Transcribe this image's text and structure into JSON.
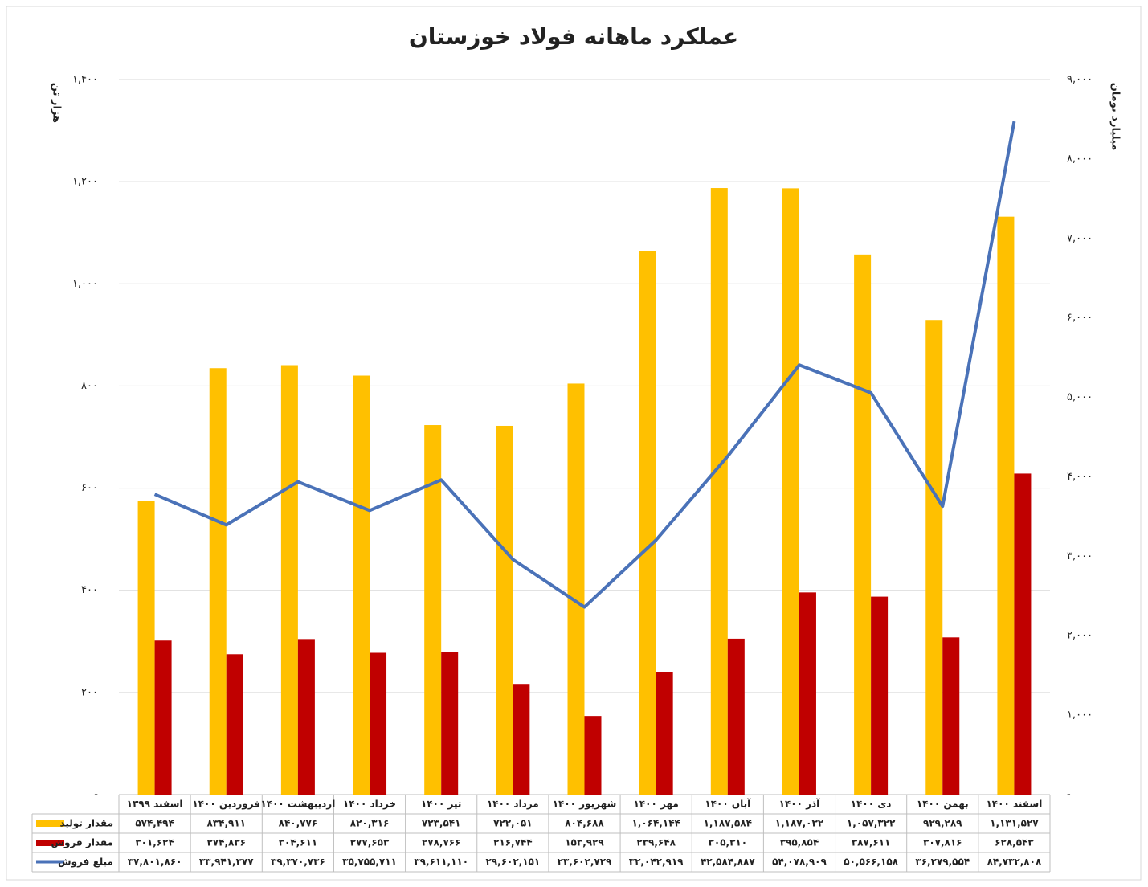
{
  "chart_data": {
    "type": "bar",
    "title": "عملکرد ماهانه فولاد خوزستان",
    "y_label": "هزار تن",
    "y2_label": "میلیارد تومان",
    "categories": [
      "اسفند ۱۳۹۹",
      "فروردین ۱۴۰۰",
      "اردیبهشت ۱۴۰۰",
      "خرداد ۱۴۰۰",
      "تیر ۱۴۰۰",
      "مرداد ۱۴۰۰",
      "شهریور ۱۴۰۰",
      "مهر ۱۴۰۰",
      "آبان ۱۴۰۰",
      "آذر ۱۴۰۰",
      "دی ۱۴۰۰",
      "بهمن ۱۴۰۰",
      "اسفند ۱۴۰۰"
    ],
    "series": [
      {
        "name": "مقدار تولید",
        "type": "bar",
        "color": "#ffc000",
        "values": [
          574.494,
          834.911,
          840.776,
          820.316,
          723.541,
          722.051,
          804.688,
          1064.144,
          1187.584,
          1187.032,
          1057.322,
          929.289,
          1131.527
        ],
        "value_labels": [
          "۵۷۴,۴۹۴",
          "۸۳۴,۹۱۱",
          "۸۴۰,۷۷۶",
          "۸۲۰,۳۱۶",
          "۷۲۳,۵۴۱",
          "۷۲۲,۰۵۱",
          "۸۰۴,۶۸۸",
          "۱,۰۶۴,۱۴۴",
          "۱,۱۸۷,۵۸۴",
          "۱,۱۸۷,۰۳۲",
          "۱,۰۵۷,۳۲۲",
          "۹۲۹,۲۸۹",
          "۱,۱۳۱,۵۲۷"
        ]
      },
      {
        "name": "مقدار فروش",
        "type": "bar",
        "color": "#c00000",
        "values": [
          301.624,
          274.836,
          304.611,
          277.653,
          278.766,
          216.744,
          153.929,
          239.648,
          305.31,
          395.854,
          387.611,
          307.816,
          628.543
        ],
        "value_labels": [
          "۳۰۱,۶۲۴",
          "۲۷۴,۸۳۶",
          "۳۰۴,۶۱۱",
          "۲۷۷,۶۵۳",
          "۲۷۸,۷۶۶",
          "۲۱۶,۷۴۴",
          "۱۵۳,۹۲۹",
          "۲۳۹,۶۴۸",
          "۳۰۵,۳۱۰",
          "۳۹۵,۸۵۴",
          "۳۸۷,۶۱۱",
          "۳۰۷,۸۱۶",
          "۶۲۸,۵۴۳"
        ]
      },
      {
        "name": "مبلغ فروش",
        "type": "line",
        "axis": "y2",
        "color": "#4a72b8",
        "values": [
          3780.186,
          3394.1377,
          3937.0736,
          3575.5711,
          3961.111,
          2960.2151,
          2360.2729,
          3204.2919,
          4258.4887,
          5407.8909,
          5056.6158,
          3627.9554,
          8473.2808
        ],
        "value_labels": [
          "۳۷,۸۰۱,۸۶۰",
          "۳۳,۹۴۱,۳۷۷",
          "۳۹,۳۷۰,۷۳۶",
          "۳۵,۷۵۵,۷۱۱",
          "۳۹,۶۱۱,۱۱۰",
          "۲۹,۶۰۲,۱۵۱",
          "۲۳,۶۰۲,۷۲۹",
          "۳۲,۰۴۲,۹۱۹",
          "۴۲,۵۸۴,۸۸۷",
          "۵۴,۰۷۸,۹۰۹",
          "۵۰,۵۶۶,۱۵۸",
          "۳۶,۲۷۹,۵۵۴",
          "۸۴,۷۳۲,۸۰۸"
        ]
      }
    ],
    "ylim": [
      0,
      1400
    ],
    "yticks": [
      {
        "value": 0,
        "label": "-"
      },
      {
        "value": 200,
        "label": "۲۰۰"
      },
      {
        "value": 400,
        "label": "۴۰۰"
      },
      {
        "value": 600,
        "label": "۶۰۰"
      },
      {
        "value": 800,
        "label": "۸۰۰"
      },
      {
        "value": 1000,
        "label": "۱,۰۰۰"
      },
      {
        "value": 1200,
        "label": "۱,۲۰۰"
      },
      {
        "value": 1400,
        "label": "۱,۴۰۰"
      }
    ],
    "y2lim": [
      0,
      9000
    ],
    "y2ticks": [
      {
        "value": 0,
        "label": "-"
      },
      {
        "value": 1000,
        "label": "۱,۰۰۰"
      },
      {
        "value": 2000,
        "label": "۲,۰۰۰"
      },
      {
        "value": 3000,
        "label": "۳,۰۰۰"
      },
      {
        "value": 4000,
        "label": "۴,۰۰۰"
      },
      {
        "value": 5000,
        "label": "۵,۰۰۰"
      },
      {
        "value": 6000,
        "label": "۶,۰۰۰"
      },
      {
        "value": 7000,
        "label": "۷,۰۰۰"
      },
      {
        "value": 8000,
        "label": "۸,۰۰۰"
      },
      {
        "value": 9000,
        "label": "۹,۰۰۰"
      }
    ],
    "grid": true
  }
}
